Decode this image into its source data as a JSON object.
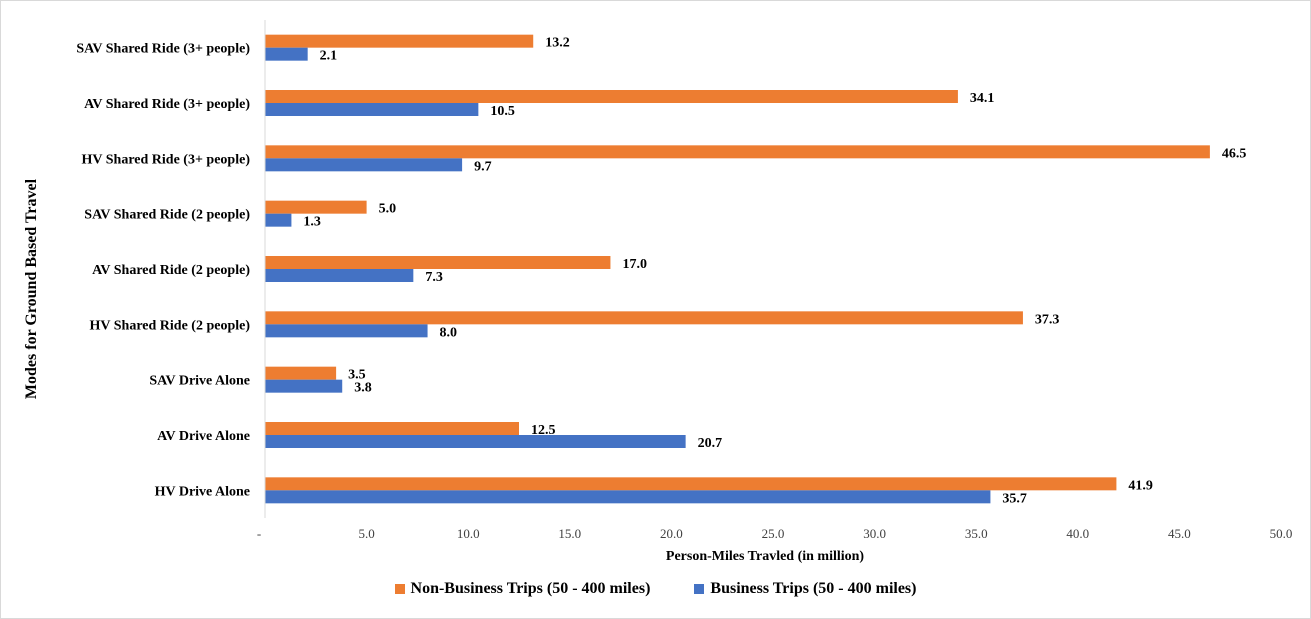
{
  "chart_data": {
    "type": "bar",
    "orientation": "horizontal",
    "title": "",
    "xlabel": "Person-Miles Travled (in million)",
    "ylabel": "Modes for Ground Based Travel",
    "xlim": [
      0,
      50
    ],
    "x_ticks": [
      "-",
      "5.0",
      "10.0",
      "15.0",
      "20.0",
      "25.0",
      "30.0",
      "35.0",
      "40.0",
      "45.0",
      "50.0"
    ],
    "legend_position": "bottom",
    "grid": false,
    "categories": [
      "SAV Shared Ride (3+ people)",
      "AV Shared Ride (3+ people)",
      "HV Shared Ride (3+ people)",
      "SAV Shared Ride (2 people)",
      "AV Shared Ride (2 people)",
      "HV Shared Ride (2 people)",
      "SAV Drive Alone",
      "AV Drive Alone",
      "HV Drive Alone"
    ],
    "series": [
      {
        "name": "Non-Business Trips (50 - 400 miles)",
        "color": "#ED7D31",
        "values": [
          13.2,
          34.1,
          46.5,
          5.0,
          17.0,
          37.3,
          3.5,
          12.5,
          41.9
        ],
        "labels": [
          "13.2",
          "34.1",
          "46.5",
          "5.0",
          "17.0",
          "37.3",
          "3.5",
          "12.5",
          "41.9"
        ]
      },
      {
        "name": "Business Trips (50 - 400 miles)",
        "color": "#4472C4",
        "values": [
          2.1,
          10.5,
          9.7,
          1.3,
          7.3,
          8.0,
          3.8,
          20.7,
          35.7
        ],
        "labels": [
          "2.1",
          "10.5",
          "9.7",
          "1.3",
          "7.3",
          "8.0",
          "3.8",
          "20.7",
          "35.7"
        ]
      }
    ]
  },
  "legend": {
    "items": [
      {
        "label": "Non-Business Trips (50 - 400 miles)",
        "color": "#ED7D31"
      },
      {
        "label": "Business Trips (50 - 400 miles)",
        "color": "#4472C4"
      }
    ]
  }
}
